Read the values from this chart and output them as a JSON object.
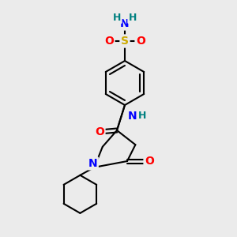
{
  "bg_color": "#ebebeb",
  "atom_colors": {
    "C": "#000000",
    "N": "#0000ff",
    "O": "#ff0000",
    "S": "#ccaa00",
    "H": "#008080"
  },
  "bond_color": "#000000",
  "bond_width": 1.5,
  "font_size_atom": 10,
  "font_size_H": 9
}
